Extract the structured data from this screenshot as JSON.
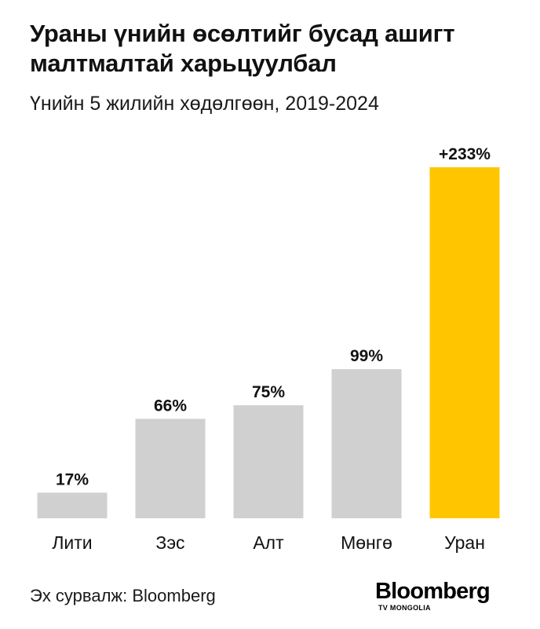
{
  "header": {
    "title_line1": "Ураны үнийн өсөлтийг бусад ашигт",
    "title_line2": "малтмалтай харьцуулбал",
    "subtitle": "Үнийн 5 жилийн хөдөлгөөн, 2019-2024"
  },
  "chart_data": {
    "type": "bar",
    "title": "Ураны үнийн өсөлтийг бусад ашигт малтмалтай харьцуулбал",
    "subtitle": "Үнийн 5 жилийн хөдөлгөөн, 2019-2024",
    "categories": [
      "Лити",
      "Зэс",
      "Алт",
      "Мөнгө",
      "Уран"
    ],
    "values": [
      17,
      66,
      75,
      99,
      233
    ],
    "value_labels": [
      "17%",
      "66%",
      "75%",
      "99%",
      "+233%"
    ],
    "unit": "%",
    "ylim": [
      0,
      233
    ],
    "xlabel": "",
    "ylabel": "",
    "grid": false,
    "legend": "none",
    "colors": {
      "default_bar": "#d0d0d0",
      "highlight_bar": "#ffc600",
      "highlight_category": "Уран",
      "text": "#111111"
    }
  },
  "footer": {
    "source": "Эх сурвалж: Bloomberg",
    "logo_main": "Bloomberg",
    "logo_sub": "TV MONGOLIA"
  }
}
